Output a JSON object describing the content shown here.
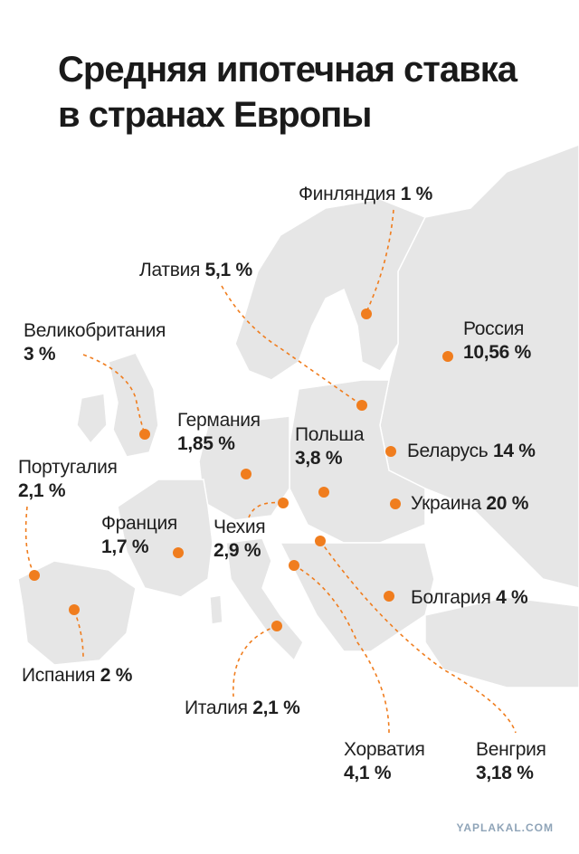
{
  "title": [
    "Средняя ипотечная ставка",
    "в странах Европы"
  ],
  "accent_color": "#f07d1e",
  "land_color": "#e6e6e6",
  "countries": [
    {
      "id": "finland",
      "name": "Финляндия",
      "rate": "1 %"
    },
    {
      "id": "latvia",
      "name": "Латвия",
      "rate": "5,1 %"
    },
    {
      "id": "russia",
      "name": "Россия",
      "rate": "10,56 %"
    },
    {
      "id": "uk",
      "name": "Великобритания",
      "rate": "3 %"
    },
    {
      "id": "germany",
      "name": "Германия",
      "rate": "1,85 %"
    },
    {
      "id": "poland",
      "name": "Польша",
      "rate": "3,8 %"
    },
    {
      "id": "belarus",
      "name": "Беларусь",
      "rate": "14 %"
    },
    {
      "id": "portugal",
      "name": "Португалия",
      "rate": "2,1 %"
    },
    {
      "id": "ukraine",
      "name": "Украина",
      "rate": "20 %"
    },
    {
      "id": "france",
      "name": "Франция",
      "rate": "1,7 %"
    },
    {
      "id": "czechia",
      "name": "Чехия",
      "rate": "2,9 %"
    },
    {
      "id": "bulgaria",
      "name": "Болгария",
      "rate": "4 %"
    },
    {
      "id": "spain",
      "name": "Испания",
      "rate": "2 %"
    },
    {
      "id": "italy",
      "name": "Италия",
      "rate": "2,1 %"
    },
    {
      "id": "croatia",
      "name": "Хорватия",
      "rate": "4,1 %"
    },
    {
      "id": "hungary",
      "name": "Венгрия",
      "rate": "3,18 %"
    }
  ],
  "watermark": "YAPLAKAL.COM"
}
